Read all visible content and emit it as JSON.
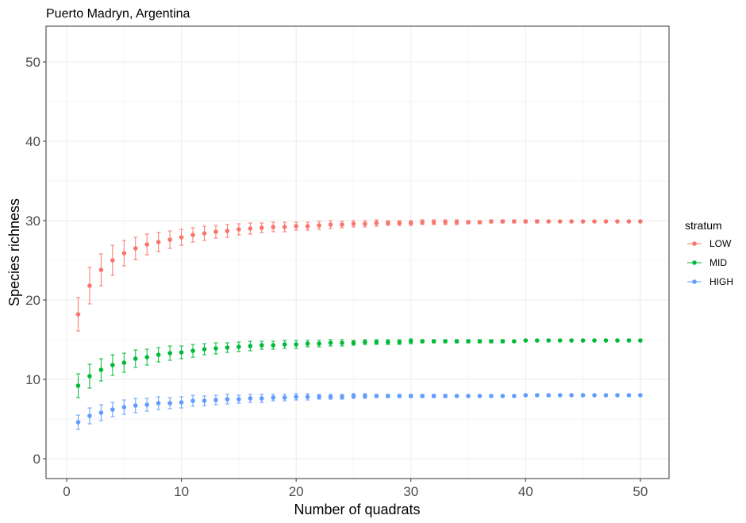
{
  "chart_data": {
    "type": "scatter",
    "title": "Puerto Madryn, Argentina",
    "xlabel": "Number of quadrats",
    "ylabel": "Species richness",
    "xlim": [
      -1.8,
      52.5
    ],
    "ylim": [
      -2.5,
      54.5
    ],
    "xticks": [
      0,
      10,
      20,
      30,
      40,
      50
    ],
    "yticks": [
      0,
      10,
      20,
      30,
      40,
      50
    ],
    "grid": true,
    "legend": {
      "title": "stratum",
      "placement": "right"
    },
    "x": [
      1,
      2,
      3,
      4,
      5,
      6,
      7,
      8,
      9,
      10,
      11,
      12,
      13,
      14,
      15,
      16,
      17,
      18,
      19,
      20,
      21,
      22,
      23,
      24,
      25,
      26,
      27,
      28,
      29,
      30,
      31,
      32,
      33,
      34,
      35,
      36,
      37,
      38,
      39,
      40,
      41,
      42,
      43,
      44,
      45,
      46,
      47,
      48,
      49,
      50
    ],
    "series": [
      {
        "name": "LOW",
        "color": "#F8766D",
        "y": [
          18.2,
          21.8,
          23.8,
          25.0,
          25.9,
          26.5,
          27.0,
          27.3,
          27.6,
          27.9,
          28.2,
          28.4,
          28.6,
          28.7,
          28.9,
          29.0,
          29.1,
          29.2,
          29.2,
          29.3,
          29.3,
          29.4,
          29.5,
          29.5,
          29.6,
          29.6,
          29.7,
          29.7,
          29.7,
          29.7,
          29.8,
          29.8,
          29.8,
          29.8,
          29.8,
          29.8,
          29.9,
          29.9,
          29.9,
          29.9,
          29.9,
          29.9,
          29.9,
          29.9,
          29.9,
          29.9,
          29.9,
          29.9,
          29.9,
          29.9
        ],
        "err": [
          2.1,
          2.3,
          2.0,
          1.9,
          1.6,
          1.4,
          1.3,
          1.2,
          1.1,
          1.0,
          0.9,
          0.9,
          0.8,
          0.8,
          0.7,
          0.7,
          0.6,
          0.6,
          0.6,
          0.5,
          0.5,
          0.5,
          0.5,
          0.4,
          0.4,
          0.4,
          0.4,
          0.3,
          0.3,
          0.3,
          0.3,
          0.3,
          0.3,
          0.3,
          0.2,
          0.2,
          0.2,
          0.2,
          0.2,
          0.2,
          0.2,
          0.1,
          0.1,
          0.1,
          0.1,
          0.1,
          0.1,
          0.1,
          0.1,
          0.1
        ]
      },
      {
        "name": "MID",
        "color": "#00BA38",
        "y": [
          9.2,
          10.4,
          11.2,
          11.8,
          12.1,
          12.6,
          12.8,
          13.1,
          13.3,
          13.4,
          13.6,
          13.8,
          13.9,
          14.0,
          14.1,
          14.2,
          14.3,
          14.3,
          14.4,
          14.4,
          14.5,
          14.5,
          14.6,
          14.6,
          14.6,
          14.7,
          14.7,
          14.7,
          14.7,
          14.8,
          14.8,
          14.8,
          14.8,
          14.8,
          14.8,
          14.8,
          14.8,
          14.8,
          14.8,
          14.9,
          14.9,
          14.9,
          14.9,
          14.9,
          14.9,
          14.9,
          14.9,
          14.9,
          14.9,
          14.9
        ],
        "err": [
          1.5,
          1.5,
          1.4,
          1.3,
          1.2,
          1.1,
          1.0,
          0.9,
          0.9,
          0.8,
          0.8,
          0.7,
          0.7,
          0.6,
          0.6,
          0.6,
          0.5,
          0.5,
          0.5,
          0.5,
          0.4,
          0.4,
          0.4,
          0.4,
          0.3,
          0.3,
          0.3,
          0.3,
          0.3,
          0.3,
          0.2,
          0.2,
          0.2,
          0.2,
          0.2,
          0.2,
          0.2,
          0.2,
          0.1,
          0.1,
          0.1,
          0.1,
          0.1,
          0.1,
          0.1,
          0.1,
          0.1,
          0.1,
          0.1,
          0.1
        ]
      },
      {
        "name": "HIGH",
        "color": "#619CFF",
        "y": [
          4.6,
          5.4,
          5.8,
          6.2,
          6.5,
          6.7,
          6.8,
          7.0,
          7.0,
          7.1,
          7.3,
          7.3,
          7.4,
          7.5,
          7.5,
          7.6,
          7.6,
          7.7,
          7.7,
          7.8,
          7.8,
          7.8,
          7.8,
          7.8,
          7.9,
          7.9,
          7.9,
          7.9,
          7.9,
          7.9,
          7.9,
          7.9,
          7.9,
          7.9,
          7.9,
          7.9,
          7.9,
          7.9,
          7.9,
          8.0,
          8.0,
          8.0,
          8.0,
          8.0,
          8.0,
          8.0,
          8.0,
          8.0,
          8.0,
          8.0
        ],
        "err": [
          0.9,
          1.0,
          1.0,
          0.9,
          0.9,
          0.9,
          0.8,
          0.8,
          0.7,
          0.7,
          0.7,
          0.6,
          0.6,
          0.6,
          0.5,
          0.5,
          0.5,
          0.4,
          0.4,
          0.4,
          0.4,
          0.3,
          0.3,
          0.3,
          0.3,
          0.3,
          0.2,
          0.2,
          0.2,
          0.2,
          0.2,
          0.2,
          0.2,
          0.1,
          0.1,
          0.1,
          0.1,
          0.1,
          0.1,
          0.1,
          0.1,
          0.1,
          0.1,
          0.1,
          0.1,
          0.1,
          0.1,
          0.1,
          0.1,
          0.1
        ]
      }
    ]
  }
}
